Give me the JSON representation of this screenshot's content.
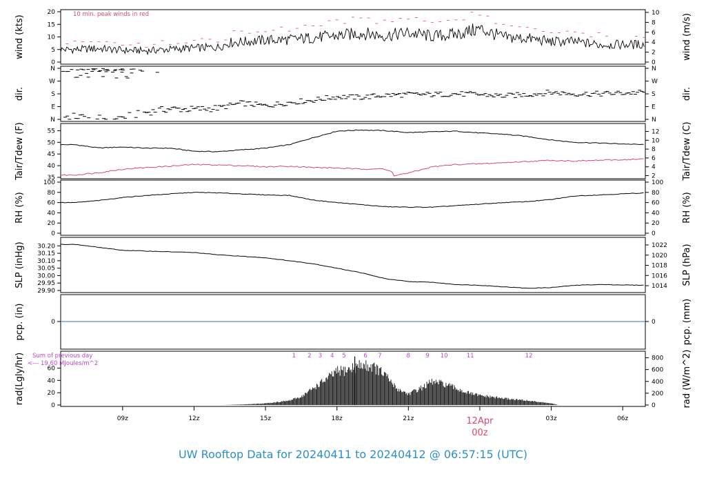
{
  "title": "UW Rooftop Data for 20240411  to  20240412 @ 06:57:15  (UTC)",
  "colors": {
    "dew": "#d8486b",
    "pcp": "#3b6fb6",
    "title": "#2a8fcb",
    "note": "#c03fd0",
    "date": "#d8486b",
    "wind_note": "#d8486b"
  },
  "chart_data": [
    {
      "id": "wind",
      "type": "line",
      "ylabel_left": "wind (kts)",
      "ylabel_right": "wind (m/s)",
      "ylim": [
        0,
        20
      ],
      "ticks_left": [
        "0",
        "5",
        "10",
        "15",
        "20"
      ],
      "ticks_right": [
        "0",
        "2",
        "4",
        "6",
        "8",
        "10"
      ],
      "annotation": "10 min. peak winds in red",
      "series": [
        {
          "values": [
            [
              7,
              5.0
            ],
            [
              8,
              5.4
            ],
            [
              9,
              4.7
            ],
            [
              10,
              4.5
            ],
            [
              11,
              5.1
            ],
            [
              12,
              5.6
            ],
            [
              13,
              5.9
            ],
            [
              13.5,
              7.8
            ],
            [
              14,
              8.0
            ],
            [
              15,
              8.7
            ],
            [
              16,
              8.9
            ],
            [
              17,
              9.7
            ],
            [
              18,
              10.4
            ],
            [
              19,
              11.5
            ],
            [
              20,
              10.5
            ],
            [
              21,
              11.6
            ],
            [
              22,
              10.2
            ],
            [
              23,
              11.0
            ],
            [
              24,
              13.2
            ],
            [
              25,
              9.8
            ],
            [
              26,
              9.4
            ],
            [
              27,
              8.1
            ],
            [
              28,
              8.1
            ],
            [
              29,
              6.9
            ],
            [
              30.9,
              7.0
            ]
          ]
        }
      ],
      "peaks": [
        [
          7,
          7.9
        ],
        [
          8,
          8.1
        ],
        [
          9,
          7.0
        ],
        [
          10,
          6.8
        ],
        [
          11,
          7.7
        ],
        [
          12,
          8.4
        ],
        [
          13,
          8.8
        ],
        [
          14,
          11.5
        ],
        [
          15,
          12.4
        ],
        [
          16,
          13.0
        ],
        [
          17,
          14.5
        ],
        [
          18,
          15.8
        ],
        [
          19,
          17.3
        ],
        [
          20,
          15.8
        ],
        [
          21,
          17.5
        ],
        [
          22,
          15.5
        ],
        [
          23,
          16.5
        ],
        [
          24,
          19.0
        ],
        [
          25,
          14.8
        ],
        [
          26,
          14.2
        ],
        [
          27,
          12.5
        ],
        [
          28,
          12.3
        ],
        [
          29,
          10.7
        ],
        [
          30.9,
          10.5
        ]
      ]
    },
    {
      "id": "dir",
      "type": "scatter",
      "ylabel_left": "dir.",
      "ylabel_right": "dir.",
      "ylim": [
        0,
        360
      ],
      "ticks_left": [
        "N",
        "E",
        "S",
        "W",
        "N"
      ],
      "ticks_right": [
        "N",
        "E",
        "S",
        "W",
        "N"
      ],
      "series": [
        {
          "values": [
            [
              7,
              350
            ],
            [
              8,
              340
            ],
            [
              9,
              345
            ],
            [
              9.3,
              300
            ],
            [
              7,
              20
            ],
            [
              8,
              5
            ],
            [
              9,
              15
            ],
            [
              10,
              50
            ],
            [
              11,
              75
            ],
            [
              12,
              70
            ],
            [
              13,
              80
            ],
            [
              14,
              115
            ],
            [
              15,
              95
            ],
            [
              16,
              120
            ],
            [
              17,
              135
            ],
            [
              18,
              160
            ],
            [
              19,
              155
            ],
            [
              20,
              170
            ],
            [
              21,
              175
            ],
            [
              22,
              175
            ],
            [
              23,
              180
            ],
            [
              24,
              175
            ],
            [
              25,
              165
            ],
            [
              26,
              175
            ],
            [
              27,
              190
            ],
            [
              28,
              180
            ],
            [
              29,
              180
            ],
            [
              30.9,
              190
            ]
          ]
        }
      ]
    },
    {
      "id": "temp",
      "type": "line",
      "ylabel_left": "Tair/Tdew (F)",
      "ylabel_right": "Tair/Tdew (C)",
      "ylim": [
        35,
        56
      ],
      "ticks_left": [
        "35",
        "40",
        "45",
        "50",
        "55"
      ],
      "ticks_right": [
        "2",
        "4",
        "6",
        "8",
        "10",
        "12"
      ],
      "series": [
        {
          "values": [
            [
              7,
              49.0
            ],
            [
              8,
              47.6
            ],
            [
              9,
              48.0
            ],
            [
              10,
              47.5
            ],
            [
              11,
              47.5
            ],
            [
              12,
              46.2
            ],
            [
              13,
              46.0
            ],
            [
              14,
              46.8
            ],
            [
              15,
              47.5
            ],
            [
              16,
              49.0
            ],
            [
              17,
              52.0
            ],
            [
              18,
              54.8
            ],
            [
              19,
              55.3
            ],
            [
              20,
              55.0
            ],
            [
              21,
              54.2
            ],
            [
              22,
              54.5
            ],
            [
              23,
              54.8
            ],
            [
              24,
              54.0
            ],
            [
              25,
              53.5
            ],
            [
              26,
              52.5
            ],
            [
              27,
              51.0
            ],
            [
              28,
              50.0
            ],
            [
              29,
              49.7
            ],
            [
              30.9,
              49.0
            ]
          ]
        },
        {
          "values": [
            [
              7,
              36.0
            ],
            [
              8,
              37.0
            ],
            [
              9,
              38.5
            ],
            [
              10,
              39.2
            ],
            [
              11,
              39.8
            ],
            [
              12,
              40.5
            ],
            [
              13,
              40.3
            ],
            [
              14,
              40.0
            ],
            [
              15,
              39.5
            ],
            [
              16,
              39.8
            ],
            [
              17,
              39.2
            ],
            [
              18,
              39.0
            ],
            [
              19,
              38.5
            ],
            [
              19.8,
              38.8
            ],
            [
              20.3,
              37.5
            ],
            [
              20.4,
              35.8
            ],
            [
              21,
              36.8
            ],
            [
              22,
              39.5
            ],
            [
              23,
              40.5
            ],
            [
              24,
              40.8
            ],
            [
              25,
              41.3
            ],
            [
              26,
              41.8
            ],
            [
              27,
              42.3
            ],
            [
              28,
              42.0
            ],
            [
              29,
              42.3
            ],
            [
              30.9,
              42.8
            ]
          ]
        }
      ]
    },
    {
      "id": "rh",
      "type": "line",
      "ylabel_left": "RH (%)",
      "ylabel_right": "RH (%)",
      "ylim": [
        0,
        100
      ],
      "ticks_left": [
        "0",
        "20",
        "40",
        "60",
        "80",
        "100"
      ],
      "ticks_right": [
        "0",
        "20",
        "40",
        "60",
        "80",
        "100"
      ],
      "series": [
        {
          "values": [
            [
              7,
              60
            ],
            [
              8,
              64
            ],
            [
              9,
              70
            ],
            [
              10,
              74
            ],
            [
              11,
              77
            ],
            [
              12,
              80
            ],
            [
              13,
              79
            ],
            [
              14,
              77
            ],
            [
              15,
              75
            ],
            [
              16,
              74
            ],
            [
              17,
              65
            ],
            [
              18,
              60
            ],
            [
              19,
              56
            ],
            [
              20,
              52
            ],
            [
              21,
              51
            ],
            [
              22,
              51
            ],
            [
              23,
              54
            ],
            [
              24,
              57
            ],
            [
              25,
              60
            ],
            [
              26,
              62
            ],
            [
              27,
              66
            ],
            [
              28,
              73
            ],
            [
              29,
              75
            ],
            [
              30.9,
              79
            ]
          ]
        }
      ]
    },
    {
      "id": "slp",
      "type": "line",
      "ylabel_left": "SLP (inHg)",
      "ylabel_right": "SLP (hPa)",
      "ylim": [
        29.9,
        30.22
      ],
      "ticks_left": [
        "29.90",
        "29.95",
        "30.00",
        "30.05",
        "30.10",
        "30.15",
        "30.20"
      ],
      "ticks_right": [
        "1014",
        "1016",
        "1018",
        "1020",
        "1022"
      ],
      "series": [
        {
          "values": [
            [
              7,
              30.21
            ],
            [
              8,
              30.19
            ],
            [
              9,
              30.17
            ],
            [
              10,
              30.165
            ],
            [
              11,
              30.16
            ],
            [
              12,
              30.155
            ],
            [
              13,
              30.14
            ],
            [
              14,
              30.13
            ],
            [
              15,
              30.12
            ],
            [
              16,
              30.1
            ],
            [
              17,
              30.08
            ],
            [
              18,
              30.05
            ],
            [
              19,
              30.02
            ],
            [
              20,
              29.98
            ],
            [
              21,
              29.96
            ],
            [
              22,
              29.955
            ],
            [
              23,
              29.94
            ],
            [
              24,
              29.935
            ],
            [
              25,
              29.925
            ],
            [
              26,
              29.915
            ],
            [
              27,
              29.92
            ],
            [
              28,
              29.935
            ],
            [
              29,
              29.94
            ],
            [
              30.9,
              29.935
            ]
          ]
        }
      ]
    },
    {
      "id": "pcp",
      "type": "line",
      "ylabel_left": "pcp. (in)",
      "ylabel_right": "pcp. (mm)",
      "ticks_left": [
        "0"
      ],
      "ticks_right": [
        "0"
      ],
      "series": [
        {
          "values": [
            [
              6.4,
              0
            ],
            [
              30.9,
              0
            ]
          ]
        }
      ]
    },
    {
      "id": "rad",
      "type": "area",
      "ylabel_left": "rad(Lgly/hr)",
      "ylabel_right": "rad (W/m^2)",
      "ylim": [
        0,
        83
      ],
      "ticks_left": [
        "0",
        "20",
        "40",
        "60"
      ],
      "ticks_right": [
        "0",
        "200",
        "400",
        "600",
        "800"
      ],
      "note_line1": "Sum of previous day",
      "note_line2": "<--- 19.60 MJoules/m^2",
      "hour_labels": [
        "1",
        "2",
        "3",
        "4",
        "5",
        "6",
        "7",
        "8",
        "9",
        "10",
        "11",
        "12"
      ],
      "series": [
        {
          "values": [
            [
              13.2,
              0
            ],
            [
              14,
              1
            ],
            [
              15,
              3
            ],
            [
              16,
              8
            ],
            [
              16.5,
              15
            ],
            [
              17,
              30
            ],
            [
              17.5,
              45
            ],
            [
              18,
              60
            ],
            [
              18.5,
              64
            ],
            [
              19,
              72
            ],
            [
              19.5,
              70
            ],
            [
              20,
              55
            ],
            [
              20.5,
              30
            ],
            [
              21,
              20
            ],
            [
              21.5,
              30
            ],
            [
              22,
              42
            ],
            [
              22.5,
              38
            ],
            [
              23,
              30
            ],
            [
              23.5,
              22
            ],
            [
              24,
              17
            ],
            [
              25,
              12
            ],
            [
              26,
              8
            ],
            [
              27,
              3
            ],
            [
              27.3,
              0
            ]
          ]
        }
      ]
    }
  ],
  "xaxis": {
    "ticks": [
      [
        9,
        "09z"
      ],
      [
        12,
        "12z"
      ],
      [
        15,
        "15z"
      ],
      [
        18,
        "18z"
      ],
      [
        21,
        "21z"
      ],
      [
        24,
        "00z"
      ],
      [
        27,
        "03z"
      ],
      [
        30,
        "06z"
      ]
    ],
    "date_label": "12Apr",
    "date_sub": "00z",
    "xlim": [
      6.4,
      30.95
    ]
  }
}
